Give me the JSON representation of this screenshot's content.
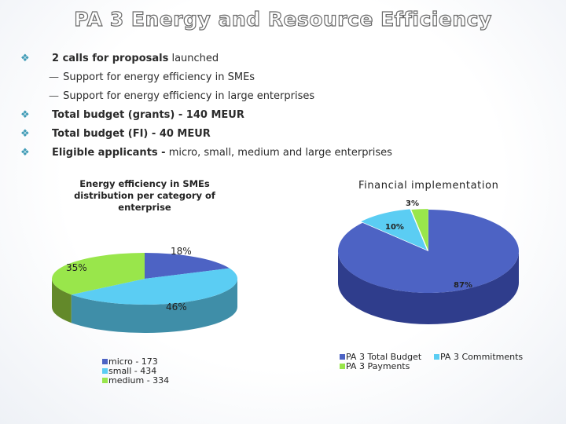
{
  "slide": {
    "title": "PA 3 Energy and Resource Efficiency",
    "bullets": [
      {
        "bold": "2 calls for proposals",
        "rest": " launched"
      },
      {
        "sub": "Support for energy efficiency in SMEs"
      },
      {
        "sub": "Support for energy efficiency in large enterprises"
      },
      {
        "bold": "Total budget (grants) - 140 MEUR",
        "rest": ""
      },
      {
        "bold": "Total budget (FI) - 40 MEUR",
        "rest": ""
      },
      {
        "bold": "Eligible applicants -",
        "rest": " micro, small, medium and large enterprises"
      }
    ],
    "sub_dash": "—",
    "bullet_icon": "diamond-cluster-icon"
  },
  "chart_data": [
    {
      "type": "pie",
      "title": "Energy efficiency in SMEs distribution per category of enterprise",
      "title_lines": [
        "Energy efficiency in SMEs",
        "distribution per category of",
        "enterprise"
      ],
      "categories": [
        "micro - 173",
        "small - 434",
        "medium - 334"
      ],
      "values": [
        173,
        434,
        334
      ],
      "percent_labels": [
        "18%",
        "46%",
        "35%"
      ],
      "colors": [
        "#4d63c4",
        "#5bcdf3",
        "#99e64b"
      ],
      "side_colors": [
        "#34449a",
        "#3f8ea8",
        "#63892a"
      ],
      "legend": "bottom-left"
    },
    {
      "type": "pie",
      "title": "Financial implementation",
      "categories": [
        "PA 3 Total Budget",
        "PA 3 Commitments",
        "PA 3 Payments"
      ],
      "values": [
        87,
        10,
        3
      ],
      "percent_labels": [
        "87%",
        "10%",
        "3%"
      ],
      "colors": [
        "#4d63c4",
        "#5bcdf3",
        "#99e64b"
      ],
      "side_colors": [
        "#2f3d8c",
        "#3f8ea8",
        "#63892a"
      ],
      "legend": "bottom"
    }
  ]
}
